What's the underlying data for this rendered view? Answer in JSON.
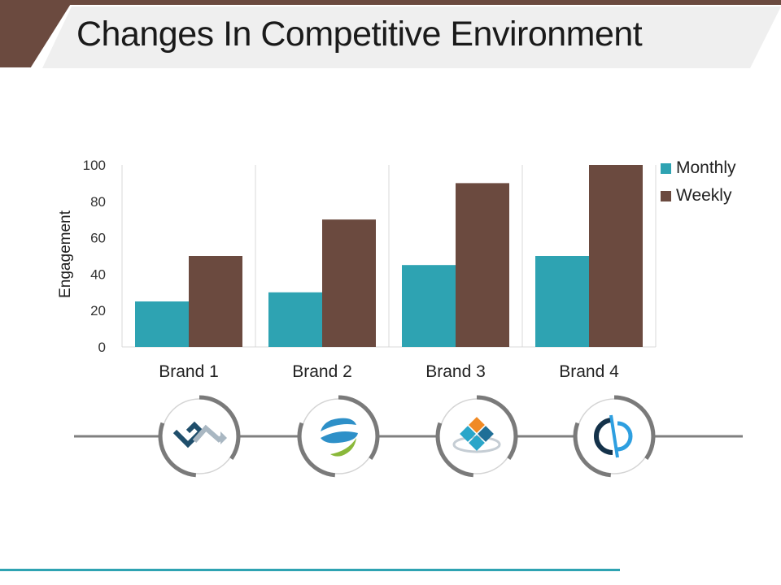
{
  "slide": {
    "title": "Changes In Competitive Environment"
  },
  "colors": {
    "accent_brown": "#6b4a3f",
    "monthly": "#2ea3b2",
    "weekly": "#6b4a3f",
    "bottom_line": "#2ea3b2",
    "connector": "#7f7f7f"
  },
  "chart_data": {
    "type": "bar",
    "title": "",
    "xlabel": "",
    "ylabel": "Engagement",
    "categories": [
      "Brand 1",
      "Brand 2",
      "Brand 3",
      "Brand 4"
    ],
    "series": [
      {
        "name": "Monthly",
        "values": [
          25,
          30,
          45,
          50
        ],
        "color": "#2ea3b2"
      },
      {
        "name": "Weekly",
        "values": [
          50,
          70,
          90,
          100
        ],
        "color": "#6b4a3f"
      }
    ],
    "ylim": [
      0,
      100
    ],
    "yticks": [
      "0",
      "20",
      "40",
      "60",
      "80",
      "100"
    ],
    "grid": "vertical category separators",
    "legend": "top-right"
  },
  "logos": [
    {
      "icon": "chain-arrows-logo-icon"
    },
    {
      "icon": "swoosh-globe-logo-icon"
    },
    {
      "icon": "diamond-tiles-logo-icon"
    },
    {
      "icon": "split-circle-logo-icon"
    }
  ]
}
